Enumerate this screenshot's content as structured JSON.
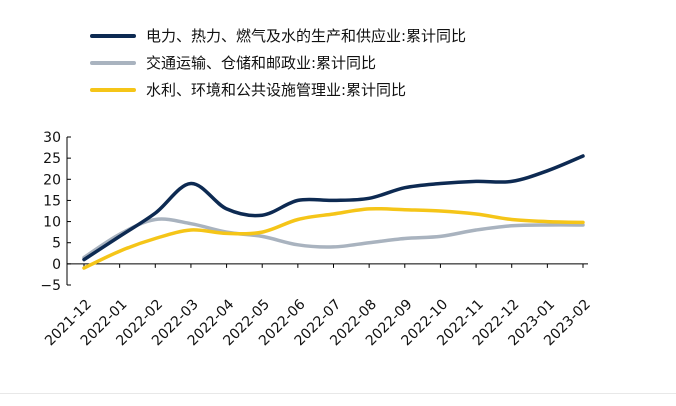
{
  "chart_data": {
    "type": "line",
    "categories": [
      "2021-12",
      "2022-01",
      "2022-02",
      "2022-03",
      "2022-04",
      "2022-05",
      "2022-06",
      "2022-07",
      "2022-08",
      "2022-09",
      "2022-10",
      "2022-11",
      "2022-12",
      "2023-01",
      "2023-02"
    ],
    "series": [
      {
        "name": "电力、热力、燃气及水的生产和供应业:累计同比",
        "color": "#0d2a52",
        "values": [
          1.0,
          6.5,
          12.0,
          19.0,
          13.0,
          11.5,
          15.0,
          15.0,
          15.5,
          18.0,
          19.0,
          19.5,
          19.5,
          22.0,
          25.5
        ]
      },
      {
        "name": "交通运输、仓储和邮政业:累计同比",
        "color": "#a9b3bf",
        "values": [
          1.5,
          7.0,
          10.5,
          9.5,
          7.5,
          6.5,
          4.5,
          4.0,
          5.0,
          6.0,
          6.5,
          8.0,
          9.0,
          9.2,
          9.2
        ]
      },
      {
        "name": "水利、环境和公共设施管理业:累计同比",
        "color": "#f5c518",
        "values": [
          -1.0,
          3.0,
          6.0,
          8.0,
          7.2,
          7.5,
          10.5,
          11.8,
          13.0,
          12.8,
          12.5,
          11.8,
          10.5,
          10.0,
          9.8
        ]
      }
    ],
    "yticks": [
      30,
      25,
      20,
      15,
      10,
      5,
      0,
      -5
    ],
    "ylim": [
      -5,
      30
    ],
    "grid": false,
    "legend_position": "top-left"
  }
}
